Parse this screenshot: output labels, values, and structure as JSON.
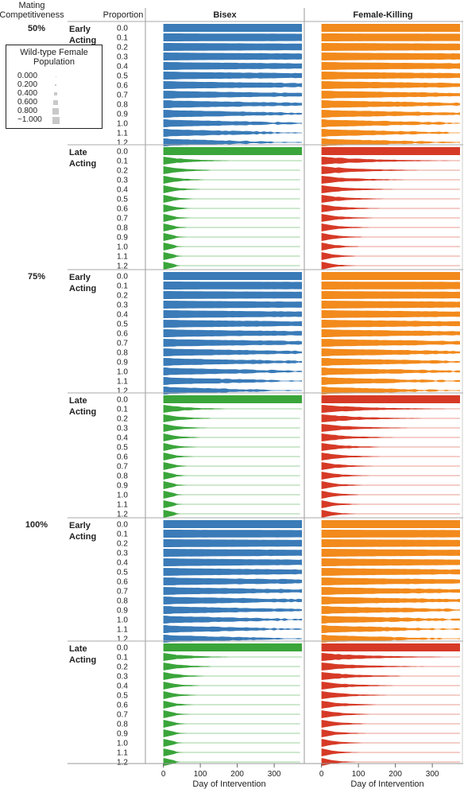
{
  "chart_data": {
    "type": "area",
    "header": {
      "mating_competitiveness": "Mating Competitiveness",
      "proportion": "Proportion"
    },
    "panels": [
      {
        "name": "Bisex",
        "xlabel": "Day of Intervention"
      },
      {
        "name": "Female-Killing",
        "xlabel": "Day of Intervention"
      }
    ],
    "x_ticks": [
      0,
      100,
      200,
      300
    ],
    "xlim": [
      -40,
      375
    ],
    "competitiveness_levels": [
      "50%",
      "75%",
      "100%"
    ],
    "acting_groups": [
      {
        "name": "Early Acting"
      },
      {
        "name": "Late Acting"
      }
    ],
    "proportions": [
      "0.0",
      "0.1",
      "0.2",
      "0.3",
      "0.4",
      "0.5",
      "0.6",
      "0.7",
      "0.8",
      "0.9",
      "1.0",
      "1.1",
      "1.2"
    ],
    "colors": {
      "bisex_early": "#3a7bb8",
      "bisex_late": "#3aa53a",
      "fk_early": "#f28a1c",
      "fk_late": "#d63a26"
    },
    "legend": {
      "title": "Wild-type Female Population",
      "entries": [
        "0.000",
        "0.200",
        "0.400",
        "0.600",
        "0.800",
        "~1.000"
      ]
    },
    "series_description": "Band width encodes wild-type female population (0 to ~1) over 0-375 days of intervention for each release proportion",
    "approx_extinction_day": {
      "bisex_early": [
        null,
        null,
        null,
        null,
        null,
        null,
        null,
        null,
        375,
        375,
        375,
        375,
        375
      ],
      "bisex_late": [
        null,
        375,
        370,
        370,
        370,
        370,
        370,
        370,
        370,
        370,
        370,
        370,
        370
      ],
      "fk_early": [
        null,
        null,
        null,
        null,
        null,
        null,
        null,
        null,
        375,
        375,
        375,
        375,
        375
      ],
      "fk_late": [
        null,
        null,
        null,
        375,
        375,
        375,
        375,
        375,
        375,
        375,
        375,
        375,
        375
      ]
    }
  }
}
